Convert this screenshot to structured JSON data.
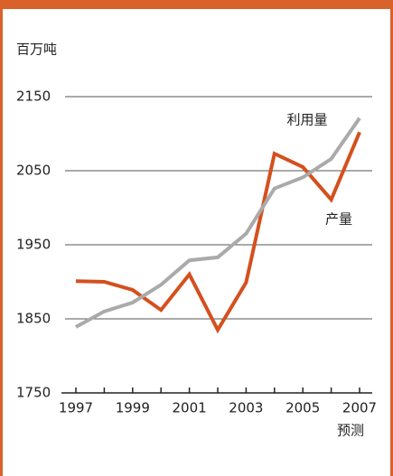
{
  "chart_data": {
    "type": "line",
    "y_label": "百万吨",
    "x": [
      1997,
      1998,
      1999,
      2000,
      2001,
      2002,
      2003,
      2004,
      2005,
      2006,
      2007
    ],
    "xlim": [
      1997,
      2007
    ],
    "xticks": [
      1997,
      1999,
      2001,
      2003,
      2005,
      2007
    ],
    "ylim": [
      1750,
      2150
    ],
    "yticks": [
      1750,
      1850,
      1950,
      2050,
      2150
    ],
    "grid": true,
    "series": [
      {
        "name": "产量",
        "color": "#d4501e",
        "values": [
          1901,
          1900,
          1889,
          1862,
          1910,
          1835,
          1899,
          2073,
          2055,
          2011,
          2102
        ]
      },
      {
        "name": "利用量",
        "color": "#aaaaaa",
        "values": [
          1839,
          1860,
          1872,
          1896,
          1929,
          1933,
          1965,
          2026,
          2041,
          2066,
          2121
        ]
      }
    ],
    "annotations": [
      "预测"
    ]
  }
}
